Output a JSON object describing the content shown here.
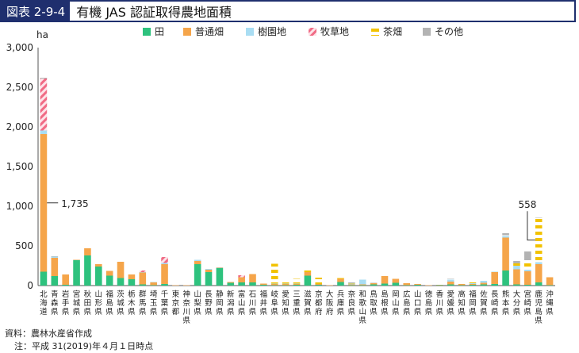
{
  "header": {
    "figure_id": "図表 2-9-4",
    "title": "有機 JAS 認証取得農地面積"
  },
  "source": "資料：農林水産省作成",
  "note": "注：平成 31(2019)年４月１日時点",
  "chart_data": {
    "type": "bar",
    "stacked": true,
    "ylabel": "ha",
    "ylim": [
      0,
      3000
    ],
    "yticks": [
      0,
      500,
      1000,
      1500,
      2000,
      2500,
      3000
    ],
    "ytick_labels": [
      "0",
      "500",
      "1,000",
      "1,500",
      "2,000",
      "2,500",
      "3,000"
    ],
    "legend_position": "top",
    "categories": [
      "北海道",
      "青森県",
      "岩手県",
      "宮城県",
      "秋田県",
      "山形県",
      "福島県",
      "茨城県",
      "栃木県",
      "群馬県",
      "埼玉県",
      "千葉県",
      "東京都",
      "神奈川県",
      "山梨県",
      "長野県",
      "静岡県",
      "新潟県",
      "富山県",
      "石川県",
      "福井県",
      "岐阜県",
      "愛知県",
      "三重県",
      "滋賀県",
      "京都府",
      "大阪府",
      "兵庫県",
      "奈良県",
      "和歌山県",
      "鳥取県",
      "島根県",
      "岡山県",
      "広島県",
      "山口県",
      "徳島県",
      "香川県",
      "愛媛県",
      "高知県",
      "福岡県",
      "佐賀県",
      "長崎県",
      "熊本県",
      "大分県",
      "宮崎県",
      "鹿児島県",
      "沖縄県"
    ],
    "series": [
      {
        "name": "田",
        "color": "#2ec27e",
        "pattern": "solid",
        "values": [
          175,
          120,
          10,
          320,
          380,
          240,
          125,
          95,
          80,
          15,
          5,
          20,
          0,
          0,
          270,
          170,
          220,
          35,
          40,
          40,
          10,
          5,
          5,
          10,
          125,
          10,
          0,
          45,
          5,
          5,
          15,
          25,
          35,
          5,
          10,
          0,
          5,
          15,
          5,
          10,
          15,
          20,
          190,
          15,
          10,
          40,
          5
        ]
      },
      {
        "name": "普通畑",
        "color": "#f5a54a",
        "pattern": "solid",
        "values": [
          1735,
          230,
          130,
          5,
          90,
          30,
          60,
          205,
          60,
          150,
          35,
          250,
          5,
          5,
          40,
          30,
          5,
          10,
          65,
          105,
          15,
          15,
          15,
          10,
          45,
          10,
          5,
          40,
          10,
          10,
          15,
          95,
          50,
          25,
          10,
          5,
          5,
          35,
          15,
          10,
          20,
          150,
          415,
          190,
          170,
          230,
          100
        ]
      },
      {
        "name": "樹園地",
        "color": "#a9ddf3",
        "pattern": "solid",
        "values": [
          45,
          15,
          0,
          0,
          0,
          0,
          0,
          0,
          0,
          5,
          5,
          15,
          0,
          0,
          15,
          10,
          5,
          0,
          0,
          0,
          0,
          5,
          5,
          5,
          0,
          0,
          0,
          0,
          10,
          60,
          0,
          0,
          0,
          0,
          0,
          0,
          0,
          25,
          0,
          10,
          25,
          5,
          20,
          45,
          20,
          25,
          0
        ]
      },
      {
        "name": "牧草地",
        "color": "#f06b85",
        "pattern": "hatch",
        "values": [
          655,
          0,
          0,
          0,
          0,
          0,
          0,
          0,
          0,
          20,
          0,
          75,
          0,
          0,
          0,
          0,
          0,
          0,
          25,
          0,
          0,
          0,
          0,
          0,
          0,
          0,
          0,
          0,
          0,
          0,
          0,
          0,
          0,
          0,
          0,
          0,
          0,
          0,
          0,
          0,
          0,
          0,
          0,
          0,
          0,
          0,
          0
        ]
      },
      {
        "name": "茶畑",
        "color": "#f2c200",
        "pattern": "dash",
        "values": [
          0,
          0,
          0,
          0,
          0,
          0,
          0,
          0,
          0,
          0,
          0,
          0,
          0,
          0,
          0,
          0,
          0,
          0,
          0,
          0,
          0,
          250,
          20,
          60,
          20,
          80,
          0,
          10,
          5,
          5,
          0,
          0,
          0,
          0,
          0,
          0,
          0,
          5,
          0,
          10,
          5,
          0,
          10,
          30,
          120,
          558,
          0
        ]
      },
      {
        "name": "その他",
        "color": "#b3b3b3",
        "pattern": "solid",
        "values": [
          10,
          5,
          0,
          0,
          0,
          0,
          0,
          0,
          0,
          0,
          0,
          0,
          0,
          0,
          0,
          0,
          0,
          0,
          0,
          0,
          0,
          0,
          0,
          0,
          0,
          0,
          0,
          0,
          10,
          0,
          5,
          0,
          0,
          0,
          0,
          0,
          0,
          5,
          0,
          0,
          0,
          0,
          25,
          30,
          110,
          5,
          0
        ]
      }
    ],
    "annotations": [
      {
        "category": "北海道",
        "series": "普通畑",
        "text": "1,735"
      },
      {
        "category": "鹿児島県",
        "series": "茶畑",
        "text": "558"
      }
    ]
  }
}
